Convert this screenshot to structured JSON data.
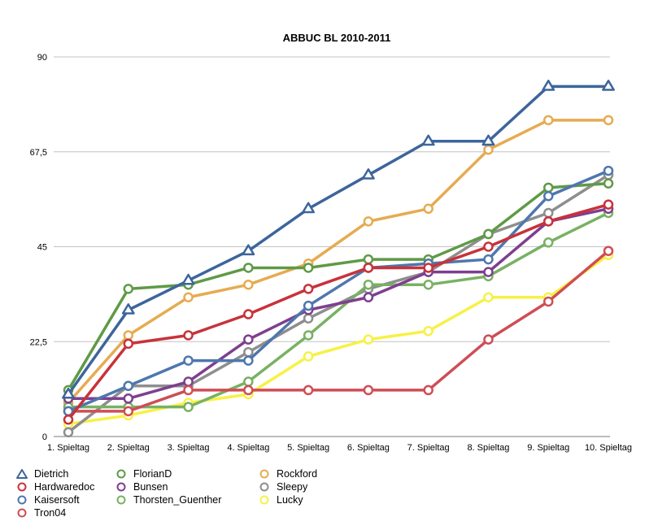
{
  "chart_data": {
    "type": "line",
    "title": "ABBUC BL 2010-2011",
    "xlabel": "",
    "ylabel": "",
    "categories": [
      "1. Spieltag",
      "2. Spieltag",
      "3. Spieltag",
      "4. Spieltag",
      "5. Spieltag",
      "6. Spieltag",
      "7. Spieltag",
      "8. Spieltag",
      "9. Spieltag",
      "10. Spieltag"
    ],
    "ylim": [
      0,
      90
    ],
    "yticks": [
      "0",
      "22,5",
      "45",
      "67,5",
      "90"
    ],
    "ytick_values": [
      0,
      22.5,
      45,
      67.5,
      90
    ],
    "grid": true,
    "legend_position": "bottom-left",
    "series": [
      {
        "name": "Dietrich",
        "color": "#3d659b",
        "marker": "triangle",
        "values": [
          10,
          30,
          37,
          44,
          54,
          62,
          70,
          70,
          83,
          83
        ]
      },
      {
        "name": "Hardwaredoc",
        "color": "#c8323a",
        "marker": "circle",
        "values": [
          4,
          22,
          24,
          29,
          35,
          40,
          40,
          45,
          51,
          55
        ]
      },
      {
        "name": "Kaisersoft",
        "color": "#4e77ad",
        "marker": "circle",
        "values": [
          6,
          12,
          18,
          18,
          31,
          40,
          41,
          42,
          57,
          63
        ]
      },
      {
        "name": "Tron04",
        "color": "#cf4d55",
        "marker": "circle",
        "values": [
          6,
          6,
          11,
          11,
          11,
          11,
          11,
          23,
          32,
          44
        ]
      },
      {
        "name": "FlorianD",
        "color": "#5f9a46",
        "marker": "circle",
        "values": [
          11,
          35,
          36,
          40,
          40,
          42,
          42,
          48,
          59,
          60
        ]
      },
      {
        "name": "Bunsen",
        "color": "#7e3f8f",
        "marker": "circle",
        "values": [
          9,
          9,
          13,
          23,
          30,
          33,
          39,
          39,
          51,
          54
        ]
      },
      {
        "name": "Thorsten_Guenther",
        "color": "#78b163",
        "marker": "circle",
        "values": [
          7,
          7,
          7,
          13,
          24,
          36,
          36,
          38,
          46,
          53
        ]
      },
      {
        "name": "Rockford",
        "color": "#e6ab51",
        "marker": "circle",
        "values": [
          8,
          24,
          33,
          36,
          41,
          51,
          54,
          68,
          75,
          75
        ]
      },
      {
        "name": "Sleepy",
        "color": "#8e8e8e",
        "marker": "circle",
        "values": [
          1,
          12,
          12,
          20,
          28,
          35,
          39,
          48,
          53,
          62
        ]
      },
      {
        "name": "Lucky",
        "color": "#f7f146",
        "marker": "circle",
        "values": [
          3,
          5,
          8,
          10,
          19,
          23,
          25,
          33,
          33,
          43
        ]
      }
    ]
  }
}
